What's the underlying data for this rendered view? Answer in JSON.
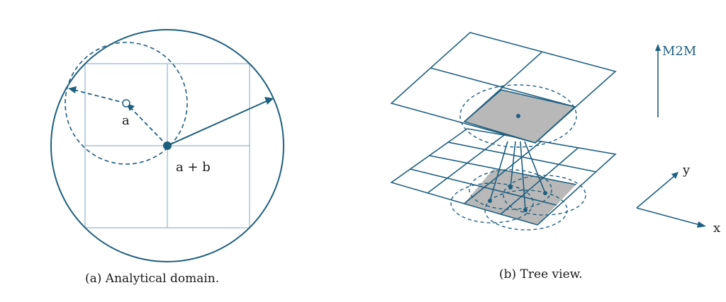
{
  "subfigure_a": {
    "caption": "(a) Analytical domain.",
    "label_a": "a",
    "label_a_plus_b": "a + b"
  },
  "subfigure_b": {
    "caption": "(b) Tree view.",
    "label_m2m": "M2M",
    "axis_x": "x",
    "axis_y": "y"
  },
  "colors": {
    "primary": "#1f5f7f",
    "grid_light": "#a9c4d3",
    "cell_fill": "#b8b8b8",
    "text": "#1a1a1a"
  }
}
